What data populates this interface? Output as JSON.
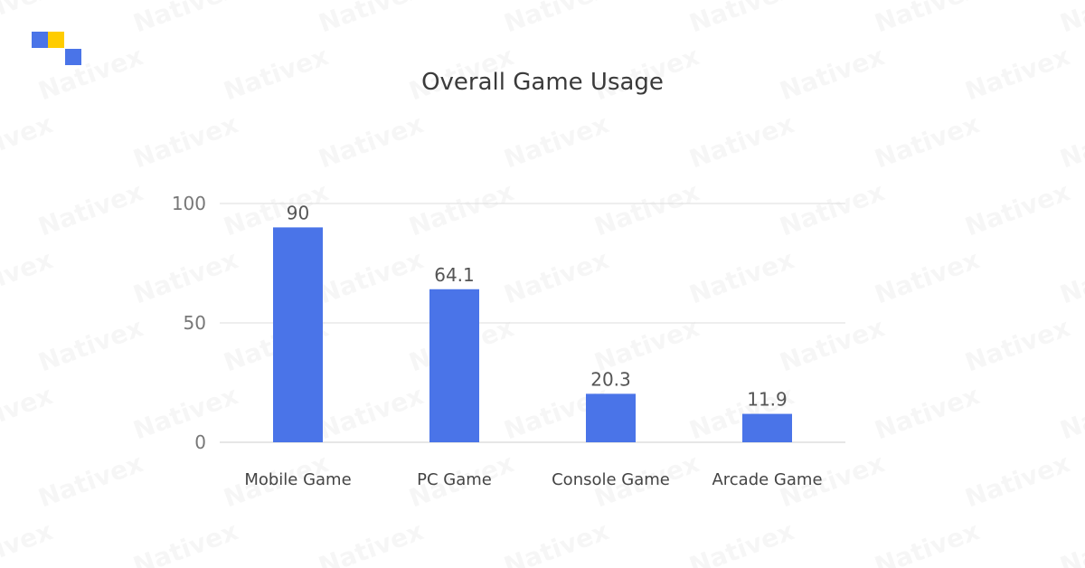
{
  "brand": {
    "logo_colors": [
      "#4a74e8",
      "#ffcc00",
      "#4a74e8"
    ],
    "watermark_text": "Nativex"
  },
  "chart_data": {
    "type": "bar",
    "title": "Overall Game Usage",
    "categories": [
      "Mobile Game",
      "PC Game",
      "Console Game",
      "Arcade Game"
    ],
    "values": [
      90,
      64.1,
      20.3,
      11.9
    ],
    "value_labels": [
      "90",
      "64.1",
      "20.3",
      "11.9"
    ],
    "ylim": [
      0,
      100
    ],
    "yticks": [
      0,
      50,
      100
    ],
    "ytick_labels": [
      "0",
      "50",
      "100"
    ],
    "grid": true,
    "bar_color": "#4a74e8",
    "xlabel": "",
    "ylabel": ""
  }
}
